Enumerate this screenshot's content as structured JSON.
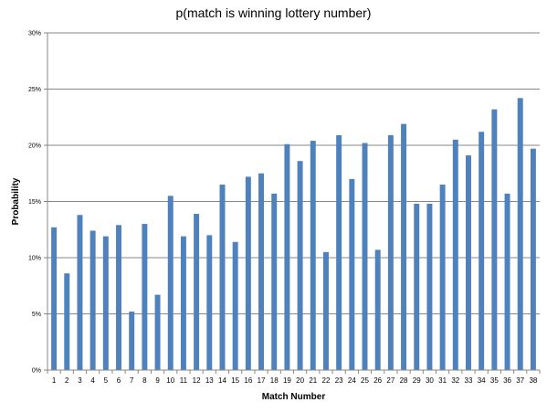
{
  "chart_data": {
    "type": "bar",
    "title": "p(match is winning lottery number)",
    "xlabel": "Match Number",
    "ylabel": "Probability",
    "ylim": [
      0,
      30
    ],
    "y_ticks": [
      "0%",
      "5%",
      "10%",
      "15%",
      "20%",
      "25%",
      "30%"
    ],
    "y_tick_values": [
      0,
      5,
      10,
      15,
      20,
      25,
      30
    ],
    "categories": [
      "1",
      "2",
      "3",
      "4",
      "5",
      "6",
      "7",
      "8",
      "9",
      "10",
      "11",
      "12",
      "13",
      "14",
      "15",
      "16",
      "17",
      "18",
      "19",
      "20",
      "21",
      "22",
      "23",
      "24",
      "25",
      "26",
      "27",
      "28",
      "29",
      "30",
      "31",
      "32",
      "33",
      "34",
      "35",
      "36",
      "37",
      "38"
    ],
    "values": [
      12.7,
      8.6,
      13.8,
      12.4,
      11.9,
      12.9,
      5.2,
      13.0,
      6.7,
      15.5,
      11.9,
      13.9,
      12.0,
      16.5,
      11.4,
      17.2,
      17.5,
      15.7,
      20.1,
      18.6,
      20.4,
      10.5,
      20.9,
      17.0,
      20.2,
      10.7,
      20.9,
      21.9,
      14.8,
      14.8,
      16.5,
      20.5,
      19.1,
      21.2,
      23.2,
      15.7,
      24.2,
      19.7
    ],
    "bar_color": "#4f81bd",
    "grid": true,
    "gridline_color": "#878787",
    "legend": false
  }
}
